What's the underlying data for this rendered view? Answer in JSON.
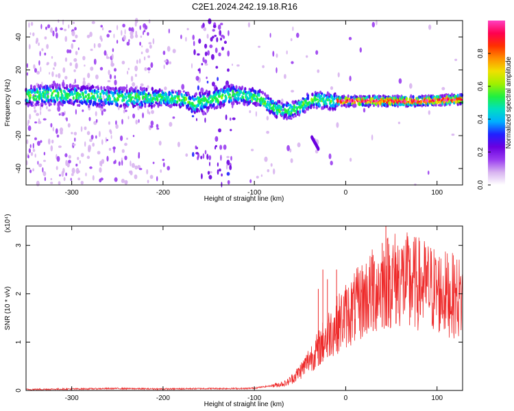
{
  "title": "C2E1.2024.242.19.18.R16",
  "chart_data": [
    {
      "type": "heatmap",
      "panel": "top",
      "xlabel": "Height of straight line (km)",
      "ylabel": "Frequency (Hz)",
      "xlim": [
        -350,
        128
      ],
      "ylim": [
        -50,
        50
      ],
      "xticks": [
        -300,
        -200,
        -100,
        0,
        100
      ],
      "yticks": [
        -40,
        -20,
        0,
        20,
        40
      ],
      "colorbar": {
        "label": "Normalized spectral amplitude",
        "range": [
          0,
          1
        ],
        "ticks": [
          "0.0",
          "0.2",
          "0.4",
          "0.6",
          "0.8"
        ],
        "colormap": [
          "#ffffff",
          "#d8b4f0",
          "#9a3df0",
          "#6a00e0",
          "#2020ff",
          "#00b0ff",
          "#00e0c0",
          "#20f040",
          "#a0f000",
          "#f0e000",
          "#ff9000",
          "#ff3000",
          "#ff0050",
          "#ff40c0"
        ]
      },
      "band_center_hz": [
        {
          "x": -350,
          "y": 4
        },
        {
          "x": -320,
          "y": 5
        },
        {
          "x": -280,
          "y": 4
        },
        {
          "x": -240,
          "y": 3
        },
        {
          "x": -200,
          "y": 3
        },
        {
          "x": -175,
          "y": 2
        },
        {
          "x": -168,
          "y": -1
        },
        {
          "x": -125,
          "y": 5
        },
        {
          "x": -110,
          "y": 4
        },
        {
          "x": -95,
          "y": 3
        },
        {
          "x": -85,
          "y": -1
        },
        {
          "x": -75,
          "y": -4
        },
        {
          "x": -60,
          "y": -5
        },
        {
          "x": -50,
          "y": -2
        },
        {
          "x": -35,
          "y": 2
        },
        {
          "x": -20,
          "y": 1
        },
        {
          "x": 0,
          "y": 1
        },
        {
          "x": 40,
          "y": 1
        },
        {
          "x": 80,
          "y": 1
        },
        {
          "x": 128,
          "y": 2
        }
      ],
      "noisy_regions_km": [
        [
          -350,
          -210
        ],
        [
          -168,
          -122
        ]
      ],
      "isolated_feature": {
        "x_range": [
          -37,
          -30
        ],
        "y_range": [
          -21,
          -28
        ]
      }
    },
    {
      "type": "line",
      "panel": "bottom",
      "xlabel": "Height of straight line (km)",
      "ylabel": "SNR (10 * v/v)",
      "y_multiplier": "(x10⁴)",
      "xlim": [
        -350,
        128
      ],
      "ylim": [
        0,
        3.4
      ],
      "xticks": [
        -300,
        -200,
        -100,
        0,
        100
      ],
      "yticks": [
        0,
        1,
        2,
        3
      ],
      "color": "#ee2a2a",
      "series": [
        {
          "x": [
            -350,
            -300,
            -250,
            -200,
            -150,
            -110,
            -100,
            -80,
            -65,
            -55,
            -45,
            -40,
            -35,
            -30,
            -25,
            -20,
            -15,
            -10,
            -5,
            0,
            10,
            20,
            30,
            40,
            50,
            60,
            70,
            80,
            90,
            100,
            110,
            128
          ],
          "values": [
            0.02,
            0.03,
            0.04,
            0.03,
            0.04,
            0.04,
            0.05,
            0.1,
            0.15,
            0.3,
            0.5,
            0.65,
            0.75,
            0.85,
            1.0,
            1.15,
            1.25,
            1.35,
            1.45,
            1.55,
            1.7,
            1.9,
            2.05,
            2.2,
            2.3,
            2.3,
            2.25,
            2.2,
            2.15,
            2.05,
            2.0,
            1.9
          ]
        }
      ],
      "spikes": [
        {
          "x": -30,
          "y": 2.1
        },
        {
          "x": -25,
          "y": 2.5
        },
        {
          "x": -20,
          "y": 2.3
        },
        {
          "x": -10,
          "y": 2.5
        },
        {
          "x": 30,
          "y": 2.8
        },
        {
          "x": 40,
          "y": 3.05
        },
        {
          "x": 44,
          "y": 3.4
        },
        {
          "x": 55,
          "y": 2.75
        },
        {
          "x": 70,
          "y": 2.7
        }
      ]
    }
  ]
}
